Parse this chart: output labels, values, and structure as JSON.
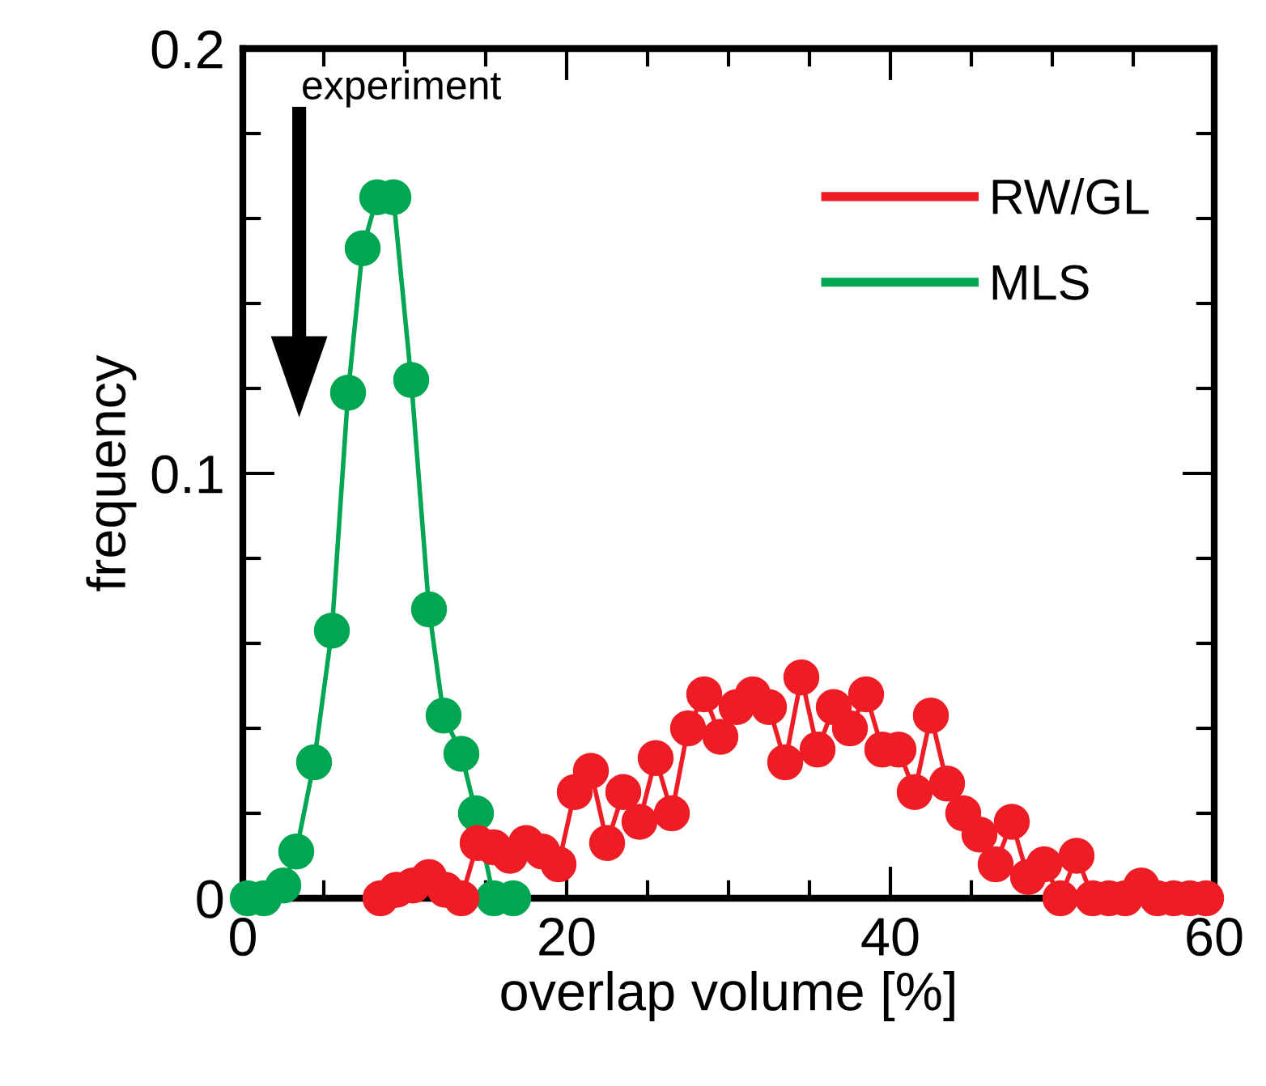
{
  "chart_data": {
    "type": "line",
    "xlabel": "overlap volume [%]",
    "ylabel": "frequency",
    "xlim": [
      0,
      60
    ],
    "ylim": [
      0,
      0.2
    ],
    "xticks": [
      0,
      {
        "value": 5,
        "label": null
      },
      {
        "value": 10,
        "label": null
      },
      {
        "value": 15,
        "label": null
      },
      20,
      {
        "value": 25,
        "label": null
      },
      {
        "value": 30,
        "label": null
      },
      {
        "value": 35,
        "label": null
      },
      40,
      {
        "value": 45,
        "label": null
      },
      {
        "value": 50,
        "label": null
      },
      {
        "value": 55,
        "label": null
      },
      60
    ],
    "yticks": [
      0,
      {
        "value": 0.02,
        "label": null
      },
      {
        "value": 0.04,
        "label": null
      },
      {
        "value": 0.06,
        "label": null
      },
      {
        "value": 0.08,
        "label": null
      },
      0.1,
      {
        "value": 0.12,
        "label": null
      },
      {
        "value": 0.14,
        "label": null
      },
      {
        "value": 0.16,
        "label": null
      },
      {
        "value": 0.18,
        "label": null
      },
      0.2
    ],
    "marker": "circle",
    "line_style": "solid",
    "legend": "top right",
    "grid": false,
    "annotations": [
      "experiment"
    ],
    "series": [
      {
        "name": "RW/GL",
        "color": "#ee1c25",
        "x": [
          8.5,
          9.5,
          10.5,
          11.5,
          12.5,
          13.5,
          14.5,
          15.5,
          16.5,
          17.5,
          18.5,
          19.5,
          20.5,
          21.5,
          22.5,
          23.5,
          24.5,
          25.5,
          26.5,
          27.5,
          28.5,
          29.5,
          30.5,
          31.5,
          32.5,
          33.5,
          34.5,
          35.5,
          36.5,
          37.5,
          38.5,
          39.5,
          40.5,
          41.5,
          42.5,
          43.5,
          44.5,
          45.5,
          46.5,
          47.5,
          48.5,
          49.5,
          50.5,
          51.5,
          52.5,
          53.5,
          54.5,
          55.5,
          56.5,
          57.5,
          58.5,
          59.5
        ],
        "values": [
          0,
          0.002,
          0.003,
          0.005,
          0.002,
          0,
          0.013,
          0.012,
          0.01,
          0.013,
          0.011,
          0.008,
          0.025,
          0.03,
          0.013,
          0.025,
          0.018,
          0.033,
          0.02,
          0.04,
          0.048,
          0.038,
          0.045,
          0.048,
          0.045,
          0.032,
          0.052,
          0.035,
          0.045,
          0.04,
          0.048,
          0.035,
          0.035,
          0.025,
          0.043,
          0.027,
          0.02,
          0.015,
          0.008,
          0.018,
          0.005,
          0.008,
          0,
          0.01,
          0,
          0,
          0,
          0.003,
          0,
          0,
          0,
          0
        ]
      },
      {
        "name": "MLS",
        "color": "#00a651",
        "x": [
          0.3,
          1.3,
          2.5,
          3.3,
          4.4,
          5.5,
          6.5,
          7.4,
          8.3,
          9.3,
          10.4,
          11.5,
          12.4,
          13.5,
          14.4,
          15.5,
          16.7
        ],
        "values": [
          0,
          0,
          0.003,
          0.011,
          0.032,
          0.063,
          0.119,
          0.153,
          0.165,
          0.165,
          0.122,
          0.068,
          0.043,
          0.034,
          0.02,
          0,
          0
        ]
      }
    ]
  }
}
